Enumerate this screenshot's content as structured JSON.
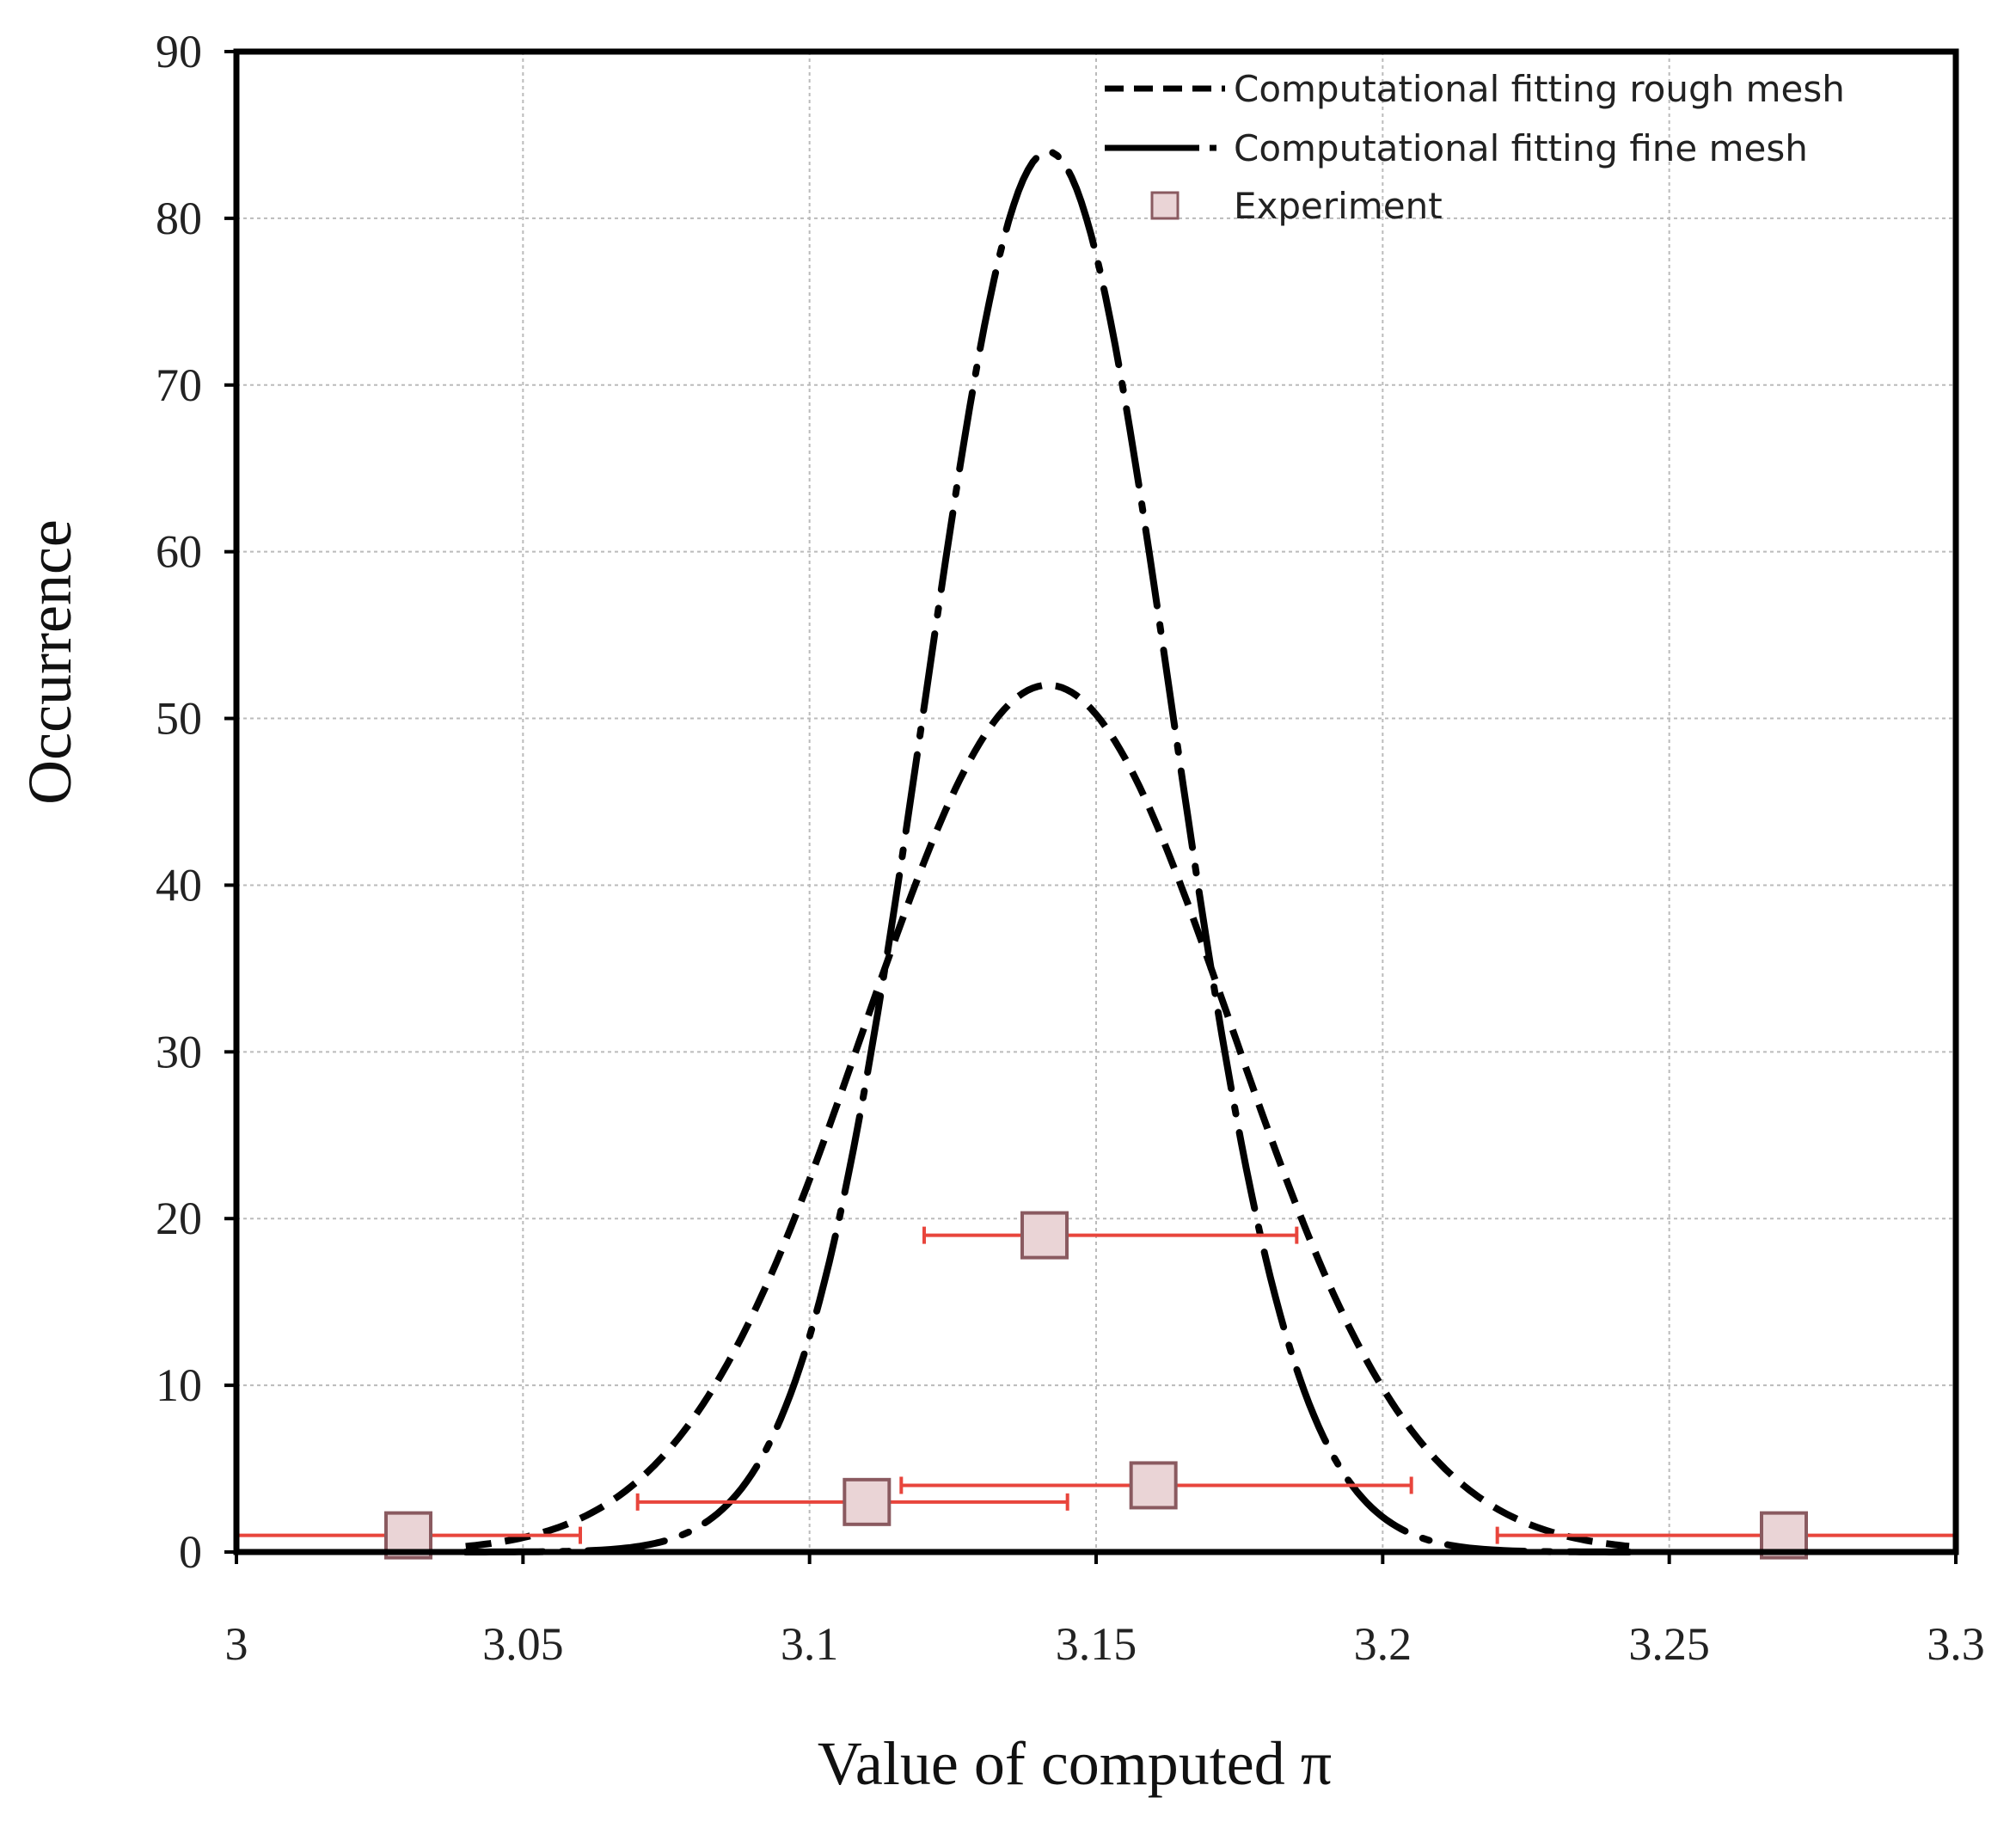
{
  "chart_data": {
    "type": "line",
    "title": "",
    "xlabel": "Value of computed π",
    "ylabel": "Occurrence",
    "xlim": [
      3,
      3.3
    ],
    "ylim": [
      0,
      90
    ],
    "grid": true,
    "x_ticks": [
      "3",
      "3.05",
      "3.1",
      "3.15",
      "3.2",
      "3.25",
      "3.3"
    ],
    "x_tick_values": [
      3,
      3.05,
      3.1,
      3.15,
      3.2,
      3.25,
      3.3
    ],
    "y_ticks": [
      "0",
      "10",
      "20",
      "30",
      "40",
      "50",
      "60",
      "70",
      "80",
      "90"
    ],
    "y_tick_values": [
      0,
      10,
      20,
      30,
      40,
      50,
      60,
      70,
      80,
      90
    ],
    "legend_position": "top-right",
    "series": [
      {
        "name": "Computational fitting rough mesh",
        "style": "dashed",
        "color": "#000000",
        "curve": "gaussian",
        "mean": 3.1416,
        "peak": 52,
        "sigma": 0.032,
        "x_range": [
          3.04,
          3.243
        ]
      },
      {
        "name": "Computational fitting fine mesh",
        "style": "dash-dot",
        "color": "#000000",
        "curve": "gaussian",
        "mean": 3.1416,
        "peak": 84,
        "sigma": 0.0215,
        "x_range": [
          3.04,
          3.243
        ]
      },
      {
        "name": "Experiment",
        "style": "markers",
        "marker_fill": "#ead4d6",
        "marker_stroke": "#8a5a60",
        "errorbar_color": "#e8453c",
        "points": [
          {
            "x": 3.03,
            "y": 1,
            "xerr_low": 3.0,
            "xerr_high": 3.06
          },
          {
            "x": 3.11,
            "y": 3,
            "xerr_low": 3.07,
            "xerr_high": 3.145
          },
          {
            "x": 3.141,
            "y": 19,
            "xerr_low": 3.12,
            "xerr_high": 3.185
          },
          {
            "x": 3.16,
            "y": 4,
            "xerr_low": 3.116,
            "xerr_high": 3.205
          },
          {
            "x": 3.27,
            "y": 1,
            "xerr_low": 3.22,
            "xerr_high": 3.3
          }
        ]
      }
    ]
  }
}
